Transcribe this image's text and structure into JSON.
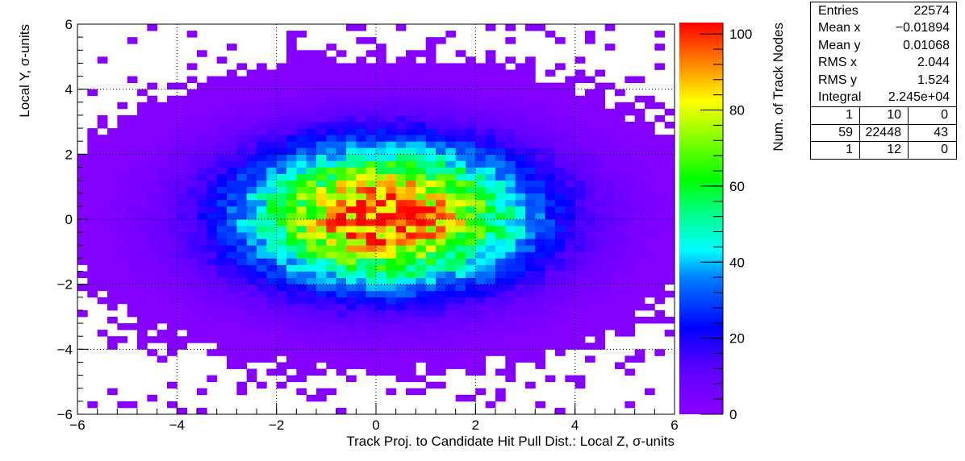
{
  "chart_data": {
    "type": "heatmap",
    "xlabel": "Track Proj. to Candidate Hit Pull Dist.: Local Z, σ-units",
    "ylabel": "Local Y, σ-units",
    "zlabel": "Num. of Track Nodes",
    "xlim": [
      -6,
      6
    ],
    "ylim": [
      -6,
      6
    ],
    "zlim": [
      0,
      103
    ],
    "x_ticks": [
      -6,
      -4,
      -2,
      0,
      2,
      4,
      6
    ],
    "y_ticks": [
      -6,
      -4,
      -2,
      0,
      2,
      4,
      6
    ],
    "z_ticks": [
      0,
      20,
      40,
      60,
      80,
      100
    ],
    "x_tick_labels": [
      "−6",
      "−4",
      "−2",
      "0",
      "2",
      "4",
      "6"
    ],
    "y_tick_labels": [
      "−6",
      "−4",
      "−2",
      "0",
      "2",
      "4",
      "6"
    ],
    "z_tick_labels": [
      "0",
      "20",
      "40",
      "60",
      "80",
      "100"
    ],
    "grid": true,
    "bins": {
      "nx": 60,
      "ny": 60
    },
    "distribution": {
      "form": "approximately 2D Gaussian (binned counts)",
      "peak_value": 100,
      "peak_center": [
        0.2,
        0.1
      ],
      "rms_x": 2.044,
      "rms_y": 1.524
    }
  },
  "stats": {
    "rows": [
      {
        "label": "Entries",
        "value": "22574"
      },
      {
        "label": "Mean x",
        "value": "−0.01894"
      },
      {
        "label": "Mean y",
        "value": "0.01068"
      },
      {
        "label": "RMS x",
        "value": "2.044"
      },
      {
        "label": "RMS y",
        "value": "1.524"
      },
      {
        "label": "Integral",
        "value": "2.245e+04"
      }
    ],
    "grid": [
      [
        "1",
        "10",
        "0"
      ],
      [
        "59",
        "22448",
        "43"
      ],
      [
        "1",
        "12",
        "0"
      ]
    ]
  }
}
